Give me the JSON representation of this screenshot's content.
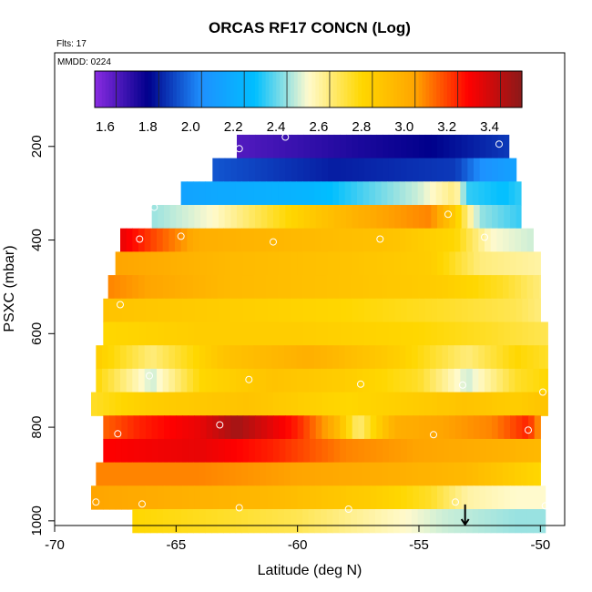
{
  "chart_data": {
    "type": "heatmap",
    "title": "ORCAS RF17 CONCN (Log)",
    "annotations": {
      "flights": "Flts: 17",
      "date": "MMDD: 0224"
    },
    "xlabel": "Latitude (deg N)",
    "ylabel": "PSXC (mbar)",
    "xlim": [
      -70,
      -49
    ],
    "ylim": [
      1010,
      0
    ],
    "x_ticks": [
      -70,
      -65,
      -60,
      -55,
      -50
    ],
    "y_ticks": [
      200,
      400,
      600,
      800,
      1000
    ],
    "colorbar": {
      "range": [
        1.5,
        3.5
      ],
      "ticks": [
        1.6,
        1.8,
        2.0,
        2.2,
        2.4,
        2.6,
        2.8,
        3.0,
        3.2,
        3.4
      ],
      "tick_labels": [
        "1.6",
        "1.8",
        "2.0",
        "2.2",
        "2.4",
        "2.6",
        "2.8",
        "3.0",
        "3.2",
        "3.4"
      ],
      "colors": [
        "#8a2be2",
        "#00008b",
        "#1e90ff",
        "#00bfff",
        "#fffacd",
        "#ffd700",
        "#ffa500",
        "#ff0000",
        "#8b1a1a"
      ]
    },
    "rows": [
      {
        "p": 200,
        "lat_min": -62.5,
        "lat_max": -51.3,
        "knots": [
          [
            -62.5,
            1.6
          ],
          [
            -57.5,
            1.7
          ],
          [
            -54.5,
            1.75
          ],
          [
            -51.3,
            1.85
          ]
        ]
      },
      {
        "p": 250,
        "lat_min": -63.5,
        "lat_max": -51.0,
        "knots": [
          [
            -63.5,
            1.9
          ],
          [
            -58.5,
            1.8
          ],
          [
            -53.5,
            1.85
          ],
          [
            -52.5,
            2.0
          ],
          [
            -51.0,
            2.1
          ]
        ]
      },
      {
        "p": 300,
        "lat_min": -64.8,
        "lat_max": -50.8,
        "knots": [
          [
            -64.8,
            2.1
          ],
          [
            -59.5,
            2.2
          ],
          [
            -55.0,
            2.45
          ],
          [
            -53.5,
            2.6
          ],
          [
            -53.0,
            2.3
          ],
          [
            -51.5,
            2.25
          ],
          [
            -50.8,
            2.3
          ]
        ]
      },
      {
        "p": 350,
        "lat_min": -66.0,
        "lat_max": -50.8,
        "knots": [
          [
            -66.0,
            2.4
          ],
          [
            -63.5,
            2.5
          ],
          [
            -61.0,
            2.7
          ],
          [
            -59.0,
            2.85
          ],
          [
            -56.5,
            3.0
          ],
          [
            -54.5,
            3.05
          ],
          [
            -53.5,
            2.8
          ],
          [
            -52.5,
            2.4
          ],
          [
            -50.8,
            2.3
          ]
        ]
      },
      {
        "p": 400,
        "lat_min": -67.3,
        "lat_max": -50.3,
        "knots": [
          [
            -67.3,
            3.3
          ],
          [
            -66.0,
            3.15
          ],
          [
            -64.0,
            2.95
          ],
          [
            -60.0,
            2.9
          ],
          [
            -56.0,
            2.85
          ],
          [
            -53.5,
            2.75
          ],
          [
            -52.0,
            2.5
          ],
          [
            -50.3,
            2.45
          ]
        ]
      },
      {
        "p": 450,
        "lat_min": -67.5,
        "lat_max": -50.0,
        "knots": [
          [
            -67.5,
            3.0
          ],
          [
            -63.0,
            2.9
          ],
          [
            -58.0,
            2.85
          ],
          [
            -54.5,
            2.8
          ],
          [
            -52.5,
            2.6
          ],
          [
            -50.0,
            2.55
          ]
        ]
      },
      {
        "p": 500,
        "lat_min": -67.8,
        "lat_max": -50.0,
        "knots": [
          [
            -67.8,
            3.05
          ],
          [
            -63.0,
            2.9
          ],
          [
            -58.0,
            2.85
          ],
          [
            -54.0,
            2.8
          ],
          [
            -51.5,
            2.7
          ],
          [
            -50.0,
            2.6
          ]
        ]
      },
      {
        "p": 550,
        "lat_min": -68.0,
        "lat_max": -50.0,
        "knots": [
          [
            -68.0,
            2.85
          ],
          [
            -63.0,
            2.8
          ],
          [
            -58.0,
            2.75
          ],
          [
            -54.0,
            2.7
          ],
          [
            -51.0,
            2.65
          ],
          [
            -50.0,
            2.6
          ]
        ]
      },
      {
        "p": 600,
        "lat_min": -68.0,
        "lat_max": -49.7,
        "knots": [
          [
            -68.0,
            2.75
          ],
          [
            -64.0,
            2.8
          ],
          [
            -60.0,
            2.8
          ],
          [
            -55.0,
            2.75
          ],
          [
            -52.0,
            2.7
          ],
          [
            -49.7,
            2.65
          ]
        ]
      },
      {
        "p": 650,
        "lat_min": -68.3,
        "lat_max": -49.7,
        "knots": [
          [
            -68.3,
            2.8
          ],
          [
            -66.0,
            2.6
          ],
          [
            -63.0,
            2.85
          ],
          [
            -59.5,
            2.95
          ],
          [
            -56.0,
            2.8
          ],
          [
            -53.0,
            2.6
          ],
          [
            -51.0,
            2.75
          ],
          [
            -49.7,
            2.7
          ]
        ]
      },
      {
        "p": 700,
        "lat_min": -68.3,
        "lat_max": -49.7,
        "knots": [
          [
            -68.3,
            2.75
          ],
          [
            -66.0,
            2.45
          ],
          [
            -64.0,
            2.75
          ],
          [
            -61.0,
            2.85
          ],
          [
            -58.0,
            2.8
          ],
          [
            -55.0,
            2.7
          ],
          [
            -53.0,
            2.45
          ],
          [
            -51.0,
            2.7
          ],
          [
            -49.7,
            2.75
          ]
        ]
      },
      {
        "p": 750,
        "lat_min": -68.5,
        "lat_max": -49.7,
        "knots": [
          [
            -68.5,
            2.7
          ],
          [
            -66.0,
            2.8
          ],
          [
            -62.0,
            2.85
          ],
          [
            -58.0,
            2.75
          ],
          [
            -55.5,
            2.8
          ],
          [
            -53.0,
            2.85
          ],
          [
            -51.0,
            2.8
          ],
          [
            -49.7,
            2.85
          ]
        ]
      },
      {
        "p": 800,
        "lat_min": -68.0,
        "lat_max": -50.0,
        "knots": [
          [
            -68.0,
            3.1
          ],
          [
            -66.5,
            3.2
          ],
          [
            -64.0,
            3.3
          ],
          [
            -62.5,
            3.45
          ],
          [
            -60.0,
            3.2
          ],
          [
            -58.5,
            2.95
          ],
          [
            -57.5,
            2.6
          ],
          [
            -56.0,
            2.95
          ],
          [
            -54.0,
            3.0
          ],
          [
            -52.0,
            3.05
          ],
          [
            -50.5,
            3.2
          ],
          [
            -50.0,
            3.0
          ]
        ]
      },
      {
        "p": 850,
        "lat_min": -68.0,
        "lat_max": -50.0,
        "knots": [
          [
            -68.0,
            3.25
          ],
          [
            -64.0,
            3.3
          ],
          [
            -61.0,
            3.2
          ],
          [
            -58.0,
            3.05
          ],
          [
            -55.0,
            3.0
          ],
          [
            -52.0,
            2.95
          ],
          [
            -50.0,
            2.9
          ]
        ]
      },
      {
        "p": 900,
        "lat_min": -68.3,
        "lat_max": -50.0,
        "knots": [
          [
            -68.3,
            3.05
          ],
          [
            -64.0,
            3.05
          ],
          [
            -60.0,
            3.0
          ],
          [
            -56.0,
            2.95
          ],
          [
            -53.0,
            2.9
          ],
          [
            -51.0,
            2.8
          ],
          [
            -50.0,
            2.75
          ]
        ]
      },
      {
        "p": 950,
        "lat_min": -68.5,
        "lat_max": -49.8,
        "knots": [
          [
            -68.5,
            3.0
          ],
          [
            -65.0,
            2.95
          ],
          [
            -61.0,
            2.9
          ],
          [
            -57.0,
            2.8
          ],
          [
            -54.5,
            2.7
          ],
          [
            -53.0,
            2.55
          ],
          [
            -51.0,
            2.5
          ],
          [
            -49.8,
            2.5
          ]
        ]
      },
      {
        "p": 1000,
        "lat_min": -66.8,
        "lat_max": -49.8,
        "knots": [
          [
            -66.8,
            2.75
          ],
          [
            -63.0,
            2.7
          ],
          [
            -60.0,
            2.65
          ],
          [
            -57.0,
            2.55
          ],
          [
            -54.0,
            2.45
          ],
          [
            -51.0,
            2.4
          ],
          [
            -49.8,
            2.4
          ]
        ]
      }
    ],
    "markers": [
      [
        -60.5,
        180
      ],
      [
        -62.4,
        205
      ],
      [
        -51.7,
        195
      ],
      [
        -65.9,
        330
      ],
      [
        -53.8,
        345
      ],
      [
        -66.5,
        398
      ],
      [
        -64.8,
        392
      ],
      [
        -61.0,
        404
      ],
      [
        -56.6,
        398
      ],
      [
        -52.3,
        394
      ],
      [
        -67.3,
        538
      ],
      [
        -66.1,
        690
      ],
      [
        -62.0,
        698
      ],
      [
        -57.4,
        708
      ],
      [
        -53.2,
        710
      ],
      [
        -49.9,
        725
      ],
      [
        -63.2,
        795
      ],
      [
        -67.4,
        814
      ],
      [
        -54.4,
        816
      ],
      [
        -50.5,
        806
      ],
      [
        -68.3,
        960
      ],
      [
        -66.4,
        964
      ],
      [
        -62.4,
        972
      ],
      [
        -57.9,
        975
      ],
      [
        -53.5,
        960
      ],
      [
        -49.8,
        968
      ]
    ],
    "arrow_marker": {
      "lat": -53.1,
      "p_from": 965,
      "p_to": 1010
    }
  }
}
